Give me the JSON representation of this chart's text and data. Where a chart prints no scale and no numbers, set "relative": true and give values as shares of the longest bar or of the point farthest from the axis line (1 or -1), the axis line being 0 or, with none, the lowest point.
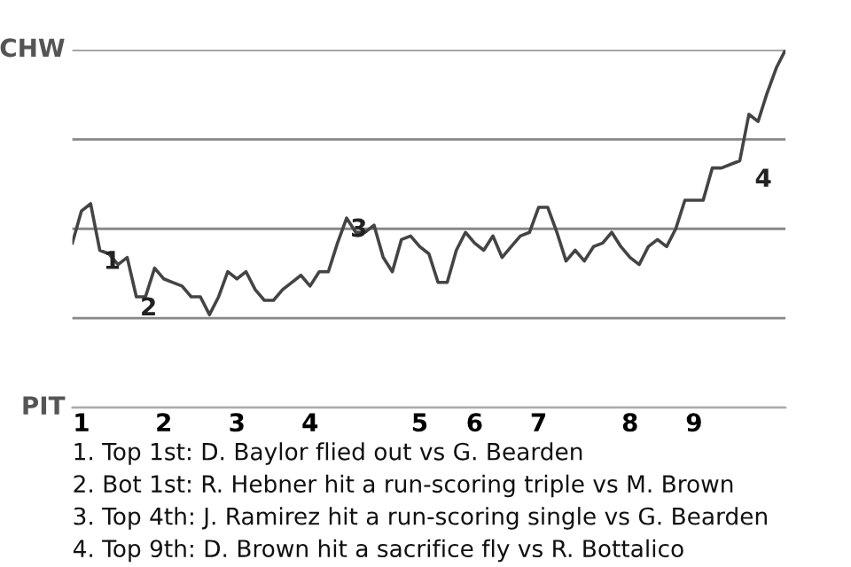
{
  "chart_data": {
    "type": "line",
    "categories": [
      null,
      "1",
      null,
      null,
      null,
      null,
      null,
      null,
      null,
      null,
      "2",
      null,
      null,
      null,
      null,
      null,
      null,
      null,
      "3",
      null,
      null,
      null,
      null,
      null,
      null,
      null,
      "4",
      null,
      null,
      null,
      null,
      null,
      null,
      null,
      null,
      null,
      null,
      null,
      "5",
      null,
      null,
      null,
      null,
      null,
      "6",
      null,
      null,
      null,
      null,
      null,
      null,
      "7",
      null,
      null,
      null,
      null,
      null,
      null,
      null,
      null,
      null,
      "8",
      null,
      null,
      null,
      null,
      null,
      null,
      "9",
      null,
      null,
      null,
      null,
      null,
      null,
      null,
      null,
      null,
      null
    ],
    "series": [
      {
        "color": "#444444",
        "values": [
          0.46,
          0.55,
          0.57,
          0.44,
          0.43,
          0.4,
          0.42,
          0.31,
          0.31,
          0.39,
          0.36,
          0.35,
          0.34,
          0.31,
          0.31,
          0.26,
          0.31,
          0.38,
          0.36,
          0.38,
          0.33,
          0.3,
          0.3,
          0.33,
          0.35,
          0.37,
          0.34,
          0.38,
          0.38,
          0.46,
          0.53,
          0.49,
          0.49,
          0.51,
          0.42,
          0.38,
          0.47,
          0.48,
          0.45,
          0.43,
          0.35,
          0.35,
          0.44,
          0.49,
          0.46,
          0.44,
          0.48,
          0.42,
          0.45,
          0.48,
          0.49,
          0.56,
          0.56,
          0.49,
          0.41,
          0.44,
          0.41,
          0.45,
          0.46,
          0.49,
          0.45,
          0.42,
          0.4,
          0.45,
          0.47,
          0.45,
          0.5,
          0.58,
          0.58,
          0.58,
          0.67,
          0.67,
          0.68,
          0.69,
          0.82,
          0.8,
          0.88,
          0.95,
          1.0
        ]
      }
    ],
    "relative": true,
    "grid": "y",
    "annotations": [
      "CHW",
      "PIT",
      {
        "text": "1",
        "y": 0.44
      },
      {
        "text": "2",
        "y": 0.31
      },
      {
        "text": "3",
        "y": 0.53
      },
      "4",
      "1. Top 1st: D. Baylor flied out vs G. Bearden",
      "2. Bot 1st: R. Hebner hit a run-scoring triple vs M. Brown",
      "3. Top 4th: J. Ramirez hit a run-scoring single vs G. Bearden",
      "4. Top 9th: D. Brown hit a sacrifice fly vs R. Bottalico"
    ]
  }
}
